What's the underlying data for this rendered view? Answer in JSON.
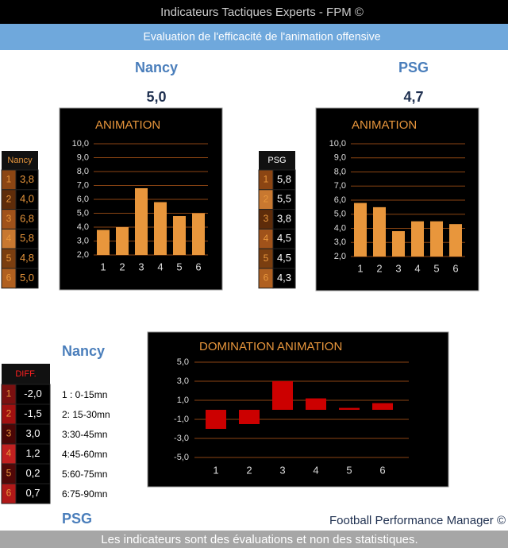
{
  "header": {
    "title": "Indicateurs Tactiques Experts - FPM ©",
    "subtitle": "Evaluation de l'efficacité de l'animation offensive"
  },
  "teams": [
    {
      "name": "Nancy",
      "score": "5,0"
    },
    {
      "name": "PSG",
      "score": "4,7"
    }
  ],
  "tables": [
    {
      "header": "Nancy",
      "rows": [
        [
          "1",
          "3,8"
        ],
        [
          "2",
          "4,0"
        ],
        [
          "3",
          "6,8"
        ],
        [
          "4",
          "5,8"
        ],
        [
          "5",
          "4,8"
        ],
        [
          "6",
          "5,0"
        ]
      ]
    },
    {
      "header": "PSG",
      "rows": [
        [
          "1",
          "5,8"
        ],
        [
          "2",
          "5,5"
        ],
        [
          "3",
          "3,8"
        ],
        [
          "4",
          "4,5"
        ],
        [
          "5",
          "4,5"
        ],
        [
          "6",
          "4,3"
        ]
      ]
    },
    {
      "header": "DIFF.",
      "rows": [
        [
          "1",
          "-2,0"
        ],
        [
          "2",
          "-1,5"
        ],
        [
          "3",
          "3,0"
        ],
        [
          "4",
          "1,2"
        ],
        [
          "5",
          "0,2"
        ],
        [
          "6",
          "0,7"
        ]
      ]
    }
  ],
  "chart_data": [
    {
      "type": "bar",
      "title": "ANIMATION",
      "categories": [
        "1",
        "2",
        "3",
        "4",
        "5",
        "6"
      ],
      "values": [
        3.8,
        4.0,
        6.8,
        5.8,
        4.8,
        5.0
      ],
      "color": "#e8963c",
      "ylim": [
        2,
        10
      ],
      "yticks": [
        {
          "value": 2,
          "label": "2,0"
        },
        {
          "value": 3,
          "label": "3,0"
        },
        {
          "value": 4,
          "label": "4,0"
        },
        {
          "value": 5,
          "label": "5,0"
        },
        {
          "value": 6,
          "label": "6,0"
        },
        {
          "value": 7,
          "label": "7,0"
        },
        {
          "value": 8,
          "label": "8,0"
        },
        {
          "value": 9,
          "label": "9,0"
        },
        {
          "value": 10,
          "label": "10,0"
        }
      ],
      "grid": true
    },
    {
      "type": "bar",
      "title": "ANIMATION",
      "categories": [
        "1",
        "2",
        "3",
        "4",
        "5",
        "6"
      ],
      "values": [
        5.8,
        5.5,
        3.8,
        4.5,
        4.5,
        4.3
      ],
      "color": "#e8963c",
      "ylim": [
        2,
        10
      ],
      "yticks": [
        {
          "value": 2,
          "label": "2,0"
        },
        {
          "value": 3,
          "label": "3,0"
        },
        {
          "value": 4,
          "label": "4,0"
        },
        {
          "value": 5,
          "label": "5,0"
        },
        {
          "value": 6,
          "label": "6,0"
        },
        {
          "value": 7,
          "label": "7,0"
        },
        {
          "value": 8,
          "label": "8,0"
        },
        {
          "value": 9,
          "label": "9,0"
        },
        {
          "value": 10,
          "label": "10,0"
        }
      ],
      "grid": true
    },
    {
      "type": "bar",
      "title": "DOMINATION ANIMATION",
      "categories": [
        "1",
        "2",
        "3",
        "4",
        "5",
        "6"
      ],
      "values": [
        -2.0,
        -1.5,
        3.0,
        1.2,
        0.2,
        0.7
      ],
      "color": "#cc0000",
      "ylim": [
        -5,
        5
      ],
      "yticks": [
        {
          "value": -5,
          "label": "-5,0"
        },
        {
          "value": -3,
          "label": "-3,0"
        },
        {
          "value": -1,
          "label": "-1,0"
        },
        {
          "value": 1,
          "label": "1,0"
        },
        {
          "value": 3,
          "label": "3,0"
        },
        {
          "value": 5,
          "label": "5,0"
        }
      ],
      "grid": true
    }
  ],
  "legend": {
    "team": "Nancy",
    "periods": [
      "1 : 0-15mn",
      "2: 15-30mn",
      "3:30-45mn",
      "4:45-60mn",
      "5:60-75mn",
      "6:75-90mn"
    ]
  },
  "bottom_team": "PSG",
  "credit": "Football Performance Manager ©",
  "footer": "Les indicateurs sont des évaluations et non des statistiques."
}
